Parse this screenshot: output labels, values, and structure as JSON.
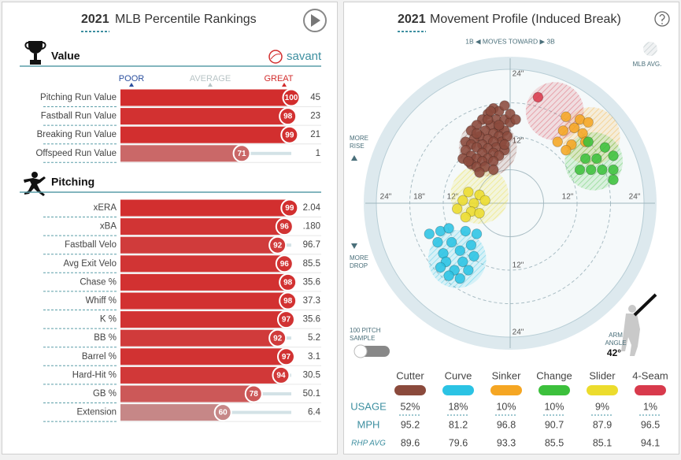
{
  "rankings": {
    "year": "2021",
    "title": "MLB Percentile Rankings",
    "brand": "savant",
    "scale_labels": [
      "POOR",
      "AVERAGE",
      "GREAT"
    ],
    "color_scale": {
      "low": "#3661ad",
      "mid": "#bebebe",
      "high": "#d22d2d"
    },
    "sections": [
      {
        "name": "Value",
        "rows": [
          {
            "label": "Pitching Run Value",
            "percentile": 100,
            "value": "45"
          },
          {
            "label": "Fastball Run Value",
            "percentile": 98,
            "value": "23"
          },
          {
            "label": "Breaking Run Value",
            "percentile": 99,
            "value": "21"
          },
          {
            "label": "Offspeed Run Value",
            "percentile": 71,
            "value": "1"
          }
        ]
      },
      {
        "name": "Pitching",
        "rows": [
          {
            "label": "xERA",
            "percentile": 99,
            "value": "2.04"
          },
          {
            "label": "xBA",
            "percentile": 96,
            "value": ".180"
          },
          {
            "label": "Fastball Velo",
            "percentile": 92,
            "value": "96.7"
          },
          {
            "label": "Avg Exit Velo",
            "percentile": 96,
            "value": "85.5"
          },
          {
            "label": "Chase %",
            "percentile": 98,
            "value": "35.6"
          },
          {
            "label": "Whiff %",
            "percentile": 98,
            "value": "37.3"
          },
          {
            "label": "K %",
            "percentile": 97,
            "value": "35.6"
          },
          {
            "label": "BB %",
            "percentile": 92,
            "value": "5.2"
          },
          {
            "label": "Barrel %",
            "percentile": 97,
            "value": "3.1"
          },
          {
            "label": "Hard-Hit %",
            "percentile": 94,
            "value": "30.5"
          },
          {
            "label": "GB %",
            "percentile": 78,
            "value": "50.1"
          },
          {
            "label": "Extension",
            "percentile": 60,
            "value": "6.4"
          }
        ]
      }
    ]
  },
  "movement": {
    "year": "2021",
    "title": "Movement Profile (Induced Break)",
    "direction": "1B ◀ MOVES TOWARD ▶ 3B",
    "mlb_avg_label": "MLB AVG.",
    "rise_label": [
      "MORE",
      "RISE"
    ],
    "drop_label": [
      "MORE",
      "DROP"
    ],
    "sample_label": [
      "100 PITCH",
      "SAMPLE"
    ],
    "arm_angle_label": [
      "ARM",
      "ANGLE"
    ],
    "arm_angle": "42°",
    "ring_labels": {
      "top": [
        {
          "value": 24,
          "label": "24\""
        },
        {
          "value": 12,
          "label": "12\""
        }
      ],
      "left": [
        {
          "value": 24,
          "label": "24\""
        },
        {
          "value": 18,
          "label": "18\""
        },
        {
          "value": 12,
          "label": "12\""
        }
      ],
      "right": [
        {
          "value": 12,
          "label": "12\""
        },
        {
          "value": 24,
          "label": "24\""
        }
      ],
      "bottom": [
        {
          "value": 12,
          "label": "12\""
        },
        {
          "value": 24,
          "label": "24\""
        }
      ]
    },
    "row_labels": [
      "USAGE",
      "MPH",
      "RHP AVG"
    ],
    "pitches": [
      {
        "name": "Cutter",
        "color": "#8b4a3c",
        "usage": "52%",
        "mph": 95.2,
        "rhp_avg": 89.6,
        "mlb_avg": [
          -4,
          10
        ],
        "points": [
          [
            -3,
            17
          ],
          [
            -2,
            16.5
          ],
          [
            -1,
            17.5
          ],
          [
            -4,
            16
          ],
          [
            -2.5,
            15
          ],
          [
            -5,
            15
          ],
          [
            -1,
            15
          ],
          [
            0,
            14.5
          ],
          [
            -3.5,
            14
          ],
          [
            -6,
            14
          ],
          [
            -2,
            13.5
          ],
          [
            -4.5,
            13
          ],
          [
            -7,
            13
          ],
          [
            -1,
            13
          ],
          [
            -3,
            12.5
          ],
          [
            -5.5,
            12
          ],
          [
            -2,
            12
          ],
          [
            -6.5,
            11.5
          ],
          [
            -4,
            11.5
          ],
          [
            -8,
            11
          ],
          [
            -1.5,
            11
          ],
          [
            -3,
            11
          ],
          [
            -5,
            10.5
          ],
          [
            -7,
            10.5
          ],
          [
            -2.5,
            10
          ],
          [
            -6,
            10
          ],
          [
            -4,
            9.8
          ],
          [
            -1,
            9.5
          ],
          [
            -8,
            9.5
          ],
          [
            -5,
            9
          ],
          [
            -3,
            9
          ],
          [
            -7,
            8.5
          ],
          [
            -2,
            8.5
          ],
          [
            -6,
            8
          ],
          [
            -4,
            8
          ],
          [
            -8.5,
            8
          ],
          [
            -5,
            7.5
          ],
          [
            -3,
            7.5
          ],
          [
            -7,
            7
          ],
          [
            -6,
            6.5
          ],
          [
            -4.5,
            6.5
          ],
          [
            -3,
            6
          ],
          [
            -5.5,
            5.5
          ],
          [
            -7.5,
            7.5
          ],
          [
            -0.5,
            12
          ],
          [
            -2,
            14
          ],
          [
            -4,
            15
          ],
          [
            -6,
            12.5
          ],
          [
            -3.5,
            16.5
          ],
          [
            0,
            16
          ],
          [
            1,
            15
          ],
          [
            -1,
            10.5
          ]
        ]
      },
      {
        "name": "Curve",
        "color": "#2bc3e4",
        "usage": "18%",
        "mph": 81.2,
        "rhp_avg": 79.6,
        "mlb_avg": [
          -9.5,
          -10
        ],
        "points": [
          [
            -14.5,
            -5.5
          ],
          [
            -12.5,
            -5
          ],
          [
            -11,
            -4.5
          ],
          [
            -8,
            -5
          ],
          [
            -6,
            -5.5
          ],
          [
            -13,
            -7
          ],
          [
            -10.5,
            -7
          ],
          [
            -7,
            -7.5
          ],
          [
            -12,
            -9
          ],
          [
            -9,
            -8.5
          ],
          [
            -6.5,
            -9.5
          ],
          [
            -11.5,
            -10.5
          ],
          [
            -8.5,
            -10.5
          ],
          [
            -10,
            -12
          ],
          [
            -7.5,
            -12
          ],
          [
            -11,
            -13
          ],
          [
            -9,
            -13.5
          ],
          [
            -12.5,
            -11.5
          ]
        ]
      },
      {
        "name": "Sinker",
        "color": "#f5a623",
        "usage": "10%",
        "mph": 96.8,
        "rhp_avg": 93.3,
        "mlb_avg": [
          14.5,
          12
        ],
        "points": [
          [
            10,
            15.5
          ],
          [
            12.5,
            15
          ],
          [
            14,
            14.5
          ],
          [
            9.5,
            13
          ],
          [
            11.5,
            13.5
          ],
          [
            13,
            12.5
          ],
          [
            8.5,
            11
          ],
          [
            11,
            10.5
          ],
          [
            13.5,
            11
          ],
          [
            10,
            9.5
          ]
        ]
      },
      {
        "name": "Change",
        "color": "#3cc03c",
        "usage": "10%",
        "mph": 90.7,
        "rhp_avg": 85.5,
        "mlb_avg": [
          15,
          7.5
        ],
        "points": [
          [
            14,
            11
          ],
          [
            17,
            10
          ],
          [
            18.5,
            8.5
          ],
          [
            13.5,
            8
          ],
          [
            15.5,
            8
          ],
          [
            12.5,
            6
          ],
          [
            14.5,
            6
          ],
          [
            16.5,
            6
          ],
          [
            18.5,
            6
          ],
          [
            18.5,
            4.2
          ]
        ]
      },
      {
        "name": "Slider",
        "color": "#ecdc2d",
        "usage": "9%",
        "mph": 87.9,
        "rhp_avg": 85.1,
        "mlb_avg": [
          -5.5,
          1.5
        ],
        "points": [
          [
            -7.5,
            2
          ],
          [
            -5.5,
            1.5
          ],
          [
            -8.5,
            0.5
          ],
          [
            -6.5,
            0
          ],
          [
            -4.5,
            0.5
          ],
          [
            -9.5,
            -1
          ],
          [
            -7,
            -1.5
          ],
          [
            -5.5,
            -1.8
          ],
          [
            -8,
            -2.5
          ]
        ]
      },
      {
        "name": "4-Seam",
        "color": "#d83a4c",
        "usage": "1%",
        "mph": 96.5,
        "rhp_avg": 94.1,
        "mlb_avg": [
          8,
          16.5
        ],
        "points": [
          [
            5,
            19
          ]
        ]
      }
    ]
  }
}
